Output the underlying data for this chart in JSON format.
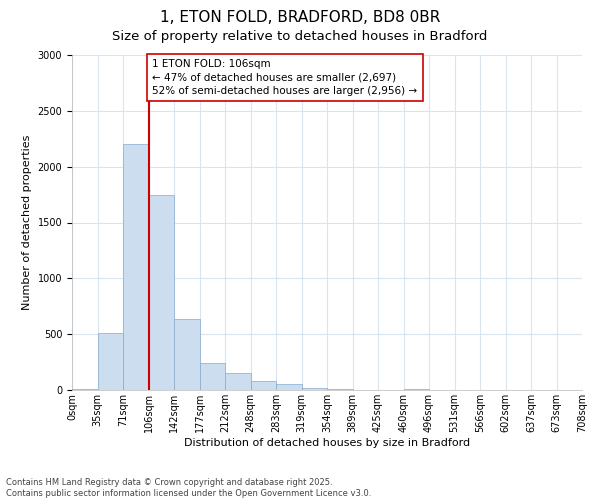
{
  "title1": "1, ETON FOLD, BRADFORD, BD8 0BR",
  "title2": "Size of property relative to detached houses in Bradford",
  "xlabel": "Distribution of detached houses by size in Bradford",
  "ylabel": "Number of detached properties",
  "bar_values": [
    10,
    510,
    2200,
    1750,
    640,
    240,
    150,
    80,
    55,
    20,
    5,
    0,
    0,
    5,
    0,
    0,
    0,
    0,
    0,
    0
  ],
  "bin_labels": [
    "0sqm",
    "35sqm",
    "71sqm",
    "106sqm",
    "142sqm",
    "177sqm",
    "212sqm",
    "248sqm",
    "283sqm",
    "319sqm",
    "354sqm",
    "389sqm",
    "425sqm",
    "460sqm",
    "496sqm",
    "531sqm",
    "566sqm",
    "602sqm",
    "637sqm",
    "673sqm",
    "708sqm"
  ],
  "bar_color": "#ccddf0",
  "bar_edge_color": "#88aacc",
  "grid_color": "#d8e4f0",
  "vline_color": "#cc0000",
  "annotation_text": "1 ETON FOLD: 106sqm\n← 47% of detached houses are smaller (2,697)\n52% of semi-detached houses are larger (2,956) →",
  "annotation_box_color": "#ffffff",
  "annotation_box_edge": "#cc0000",
  "ylim": [
    0,
    3000
  ],
  "yticks": [
    0,
    500,
    1000,
    1500,
    2000,
    2500,
    3000
  ],
  "footnote": "Contains HM Land Registry data © Crown copyright and database right 2025.\nContains public sector information licensed under the Open Government Licence v3.0.",
  "title_fontsize": 11,
  "subtitle_fontsize": 9.5,
  "label_fontsize": 8,
  "tick_fontsize": 7,
  "annotation_fontsize": 7.5,
  "footnote_fontsize": 6
}
